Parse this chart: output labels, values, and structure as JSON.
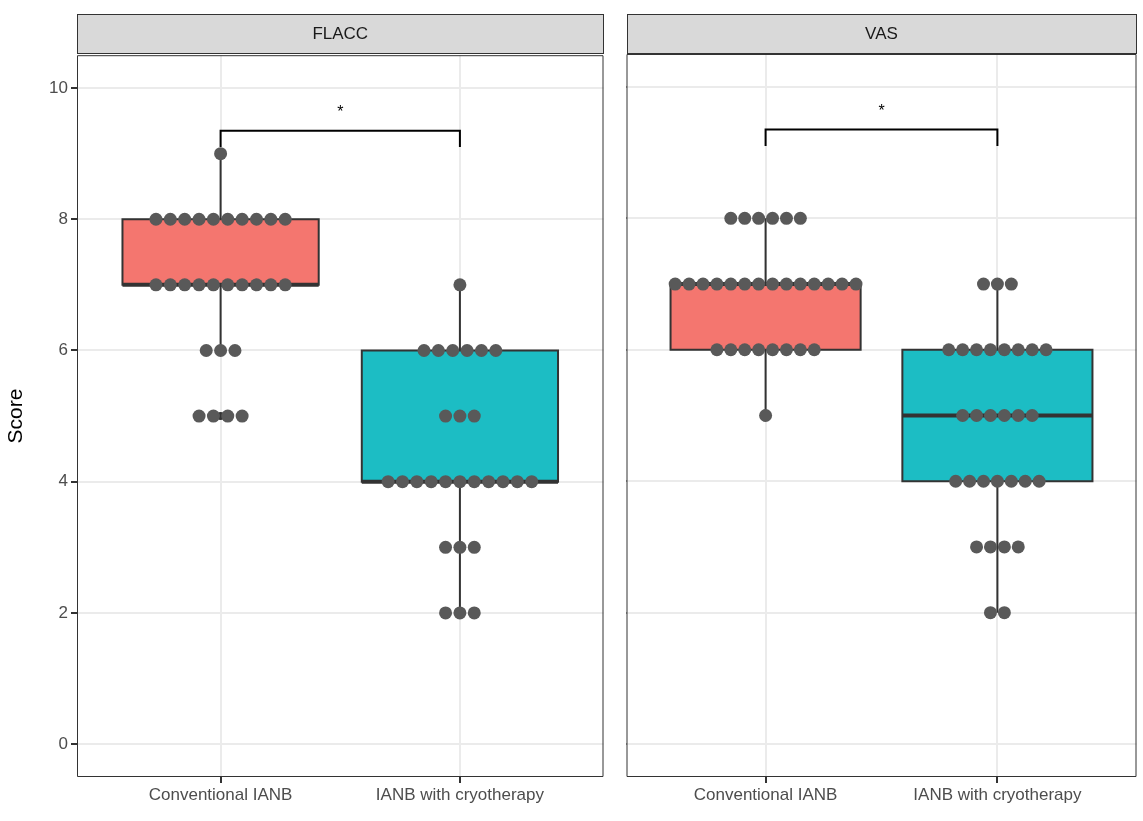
{
  "chart_data": [
    {
      "type": "box",
      "title": "FLACC",
      "ylabel": "Score",
      "categories": [
        "Conventional IANB",
        "IANB with cryotherapy"
      ],
      "ylim": [
        -0.5,
        10.5
      ],
      "yticks": [
        0,
        2,
        4,
        6,
        8,
        10
      ],
      "grid": true,
      "marker": "circle",
      "annotations": [
        "*"
      ],
      "series": [
        {
          "type": "box",
          "colors": [
            "#f4766f",
            "#1cbdc4"
          ],
          "boxes": [
            {
              "low": 6,
              "q1": 7,
              "median": 7,
              "q3": 8,
              "high": 9,
              "outliers": [
                5
              ]
            },
            {
              "low": 2,
              "q1": 4,
              "median": 4,
              "q3": 6,
              "high": 7
            }
          ]
        },
        {
          "type": "scatter",
          "color": "#595959",
          "x": [
            "Conventional IANB",
            "Conventional IANB",
            "Conventional IANB",
            "Conventional IANB",
            "Conventional IANB",
            "Conventional IANB",
            "Conventional IANB",
            "Conventional IANB",
            "Conventional IANB",
            "Conventional IANB",
            "Conventional IANB",
            "Conventional IANB",
            "Conventional IANB",
            "Conventional IANB",
            "Conventional IANB",
            "Conventional IANB",
            "Conventional IANB",
            "Conventional IANB",
            "Conventional IANB",
            "Conventional IANB",
            "Conventional IANB",
            "Conventional IANB",
            "Conventional IANB",
            "Conventional IANB",
            "Conventional IANB",
            "Conventional IANB",
            "Conventional IANB",
            "Conventional IANB",
            "IANB with cryotherapy",
            "IANB with cryotherapy",
            "IANB with cryotherapy",
            "IANB with cryotherapy",
            "IANB with cryotherapy",
            "IANB with cryotherapy",
            "IANB with cryotherapy",
            "IANB with cryotherapy",
            "IANB with cryotherapy",
            "IANB with cryotherapy",
            "IANB with cryotherapy",
            "IANB with cryotherapy",
            "IANB with cryotherapy",
            "IANB with cryotherapy",
            "IANB with cryotherapy",
            "IANB with cryotherapy",
            "IANB with cryotherapy",
            "IANB with cryotherapy",
            "IANB with cryotherapy",
            "IANB with cryotherapy",
            "IANB with cryotherapy",
            "IANB with cryotherapy",
            "IANB with cryotherapy",
            "IANB with cryotherapy",
            "IANB with cryotherapy",
            "IANB with cryotherapy",
            "IANB with cryotherapy"
          ],
          "values": [
            9,
            8,
            8,
            8,
            8,
            8,
            8,
            8,
            8,
            8,
            8,
            7,
            7,
            7,
            7,
            7,
            7,
            7,
            7,
            7,
            7,
            6,
            6,
            6,
            5,
            5,
            5,
            5,
            7,
            6,
            6,
            6,
            6,
            6,
            6,
            5,
            5,
            5,
            4,
            4,
            4,
            4,
            4,
            4,
            4,
            4,
            4,
            4,
            4,
            3,
            3,
            3,
            2,
            2,
            2
          ]
        }
      ]
    },
    {
      "type": "box",
      "title": "VAS",
      "categories": [
        "Conventional IANB",
        "IANB with cryotherapy"
      ],
      "ylim": [
        -0.5,
        10.5
      ],
      "yticks": [
        0,
        2,
        4,
        6,
        8,
        10
      ],
      "tick_labels": "x",
      "grid": true,
      "marker": "circle",
      "annotations": [
        "*"
      ],
      "series": [
        {
          "type": "box",
          "colors": [
            "#f4766f",
            "#1cbdc4"
          ],
          "boxes": [
            {
              "low": 5,
              "q1": 6,
              "median": 7,
              "q3": 7,
              "high": 8
            },
            {
              "low": 2,
              "q1": 4,
              "median": 5,
              "q3": 6,
              "high": 7
            }
          ]
        },
        {
          "type": "scatter",
          "color": "#595959",
          "x": [
            "Conventional IANB",
            "Conventional IANB",
            "Conventional IANB",
            "Conventional IANB",
            "Conventional IANB",
            "Conventional IANB",
            "Conventional IANB",
            "Conventional IANB",
            "Conventional IANB",
            "Conventional IANB",
            "Conventional IANB",
            "Conventional IANB",
            "Conventional IANB",
            "Conventional IANB",
            "Conventional IANB",
            "Conventional IANB",
            "Conventional IANB",
            "Conventional IANB",
            "Conventional IANB",
            "Conventional IANB",
            "Conventional IANB",
            "Conventional IANB",
            "Conventional IANB",
            "Conventional IANB",
            "Conventional IANB",
            "Conventional IANB",
            "Conventional IANB",
            "Conventional IANB",
            "Conventional IANB",
            "IANB with cryotherapy",
            "IANB with cryotherapy",
            "IANB with cryotherapy",
            "IANB with cryotherapy",
            "IANB with cryotherapy",
            "IANB with cryotherapy",
            "IANB with cryotherapy",
            "IANB with cryotherapy",
            "IANB with cryotherapy",
            "IANB with cryotherapy",
            "IANB with cryotherapy",
            "IANB with cryotherapy",
            "IANB with cryotherapy",
            "IANB with cryotherapy",
            "IANB with cryotherapy",
            "IANB with cryotherapy",
            "IANB with cryotherapy",
            "IANB with cryotherapy",
            "IANB with cryotherapy",
            "IANB with cryotherapy",
            "IANB with cryotherapy",
            "IANB with cryotherapy",
            "IANB with cryotherapy",
            "IANB with cryotherapy",
            "IANB with cryotherapy",
            "IANB with cryotherapy",
            "IANB with cryotherapy",
            "IANB with cryotherapy",
            "IANB with cryotherapy",
            "IANB with cryotherapy"
          ],
          "values": [
            8,
            8,
            8,
            8,
            8,
            8,
            7,
            7,
            7,
            7,
            7,
            7,
            7,
            7,
            7,
            7,
            7,
            7,
            7,
            7,
            6,
            6,
            6,
            6,
            6,
            6,
            6,
            6,
            5,
            7,
            7,
            7,
            6,
            6,
            6,
            6,
            6,
            6,
            6,
            6,
            5,
            5,
            5,
            5,
            5,
            5,
            4,
            4,
            4,
            4,
            4,
            4,
            4,
            3,
            3,
            3,
            3,
            2,
            2
          ]
        }
      ]
    }
  ]
}
